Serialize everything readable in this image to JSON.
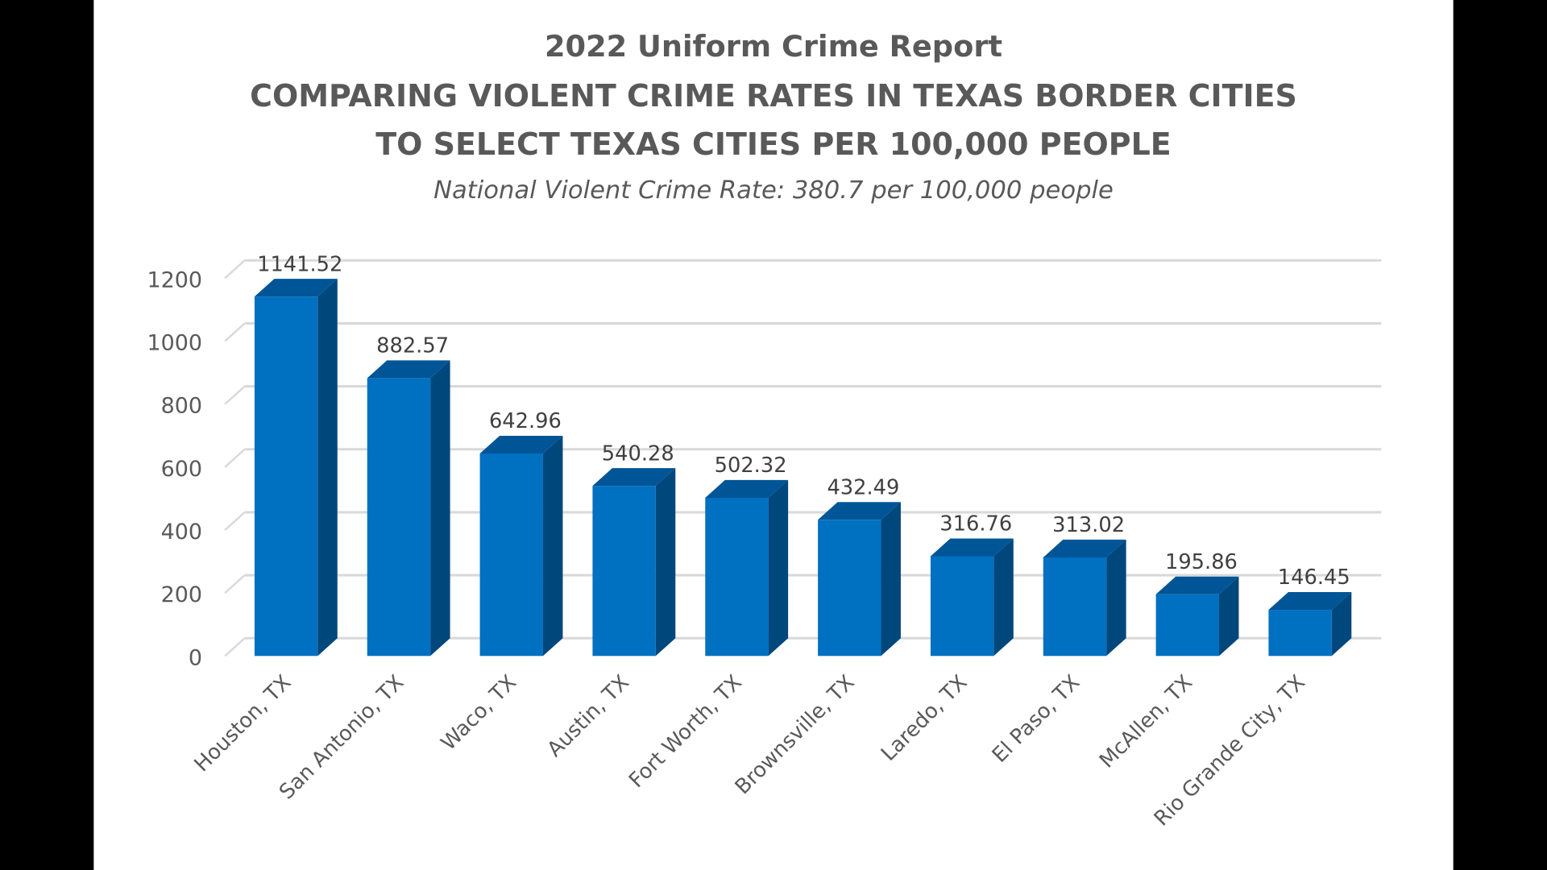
{
  "chart_data": {
    "type": "bar",
    "style": "3d-column",
    "title": "2022 Uniform Crime Report",
    "title_line2": "COMPARING VIOLENT CRIME RATES IN TEXAS BORDER CITIES",
    "title_line3": "TO SELECT TEXAS CITIES PER 100,000 PEOPLE",
    "subtitle": "National Violent Crime Rate: 380.7 per 100,000 people",
    "xlabel": "",
    "ylabel": "",
    "ylim": [
      0,
      1200
    ],
    "yticks": [
      0,
      200,
      400,
      600,
      800,
      1000,
      1200
    ],
    "grid": true,
    "legend": "none",
    "categories": [
      "Houston, TX",
      "San Antonio, TX",
      "Waco, TX",
      "Austin, TX",
      "Fort Worth, TX",
      "Brownsville, TX",
      "Laredo, TX",
      "El Paso, TX",
      "McAllen, TX",
      "Rio Grande City, TX"
    ],
    "values": [
      1141.52,
      882.57,
      642.96,
      540.28,
      502.32,
      432.49,
      316.76,
      313.02,
      195.86,
      146.45
    ],
    "data_labels": [
      "1141.52",
      "882.57",
      "642.96",
      "540.28",
      "502.32",
      "432.49",
      "316.76",
      "313.02",
      "195.86",
      "146.45"
    ],
    "colors": {
      "bar_front": "#0070c0",
      "bar_side": "#00477c",
      "bar_top": "#005596",
      "grid": "#d9d9d9",
      "text": "#595959"
    }
  }
}
